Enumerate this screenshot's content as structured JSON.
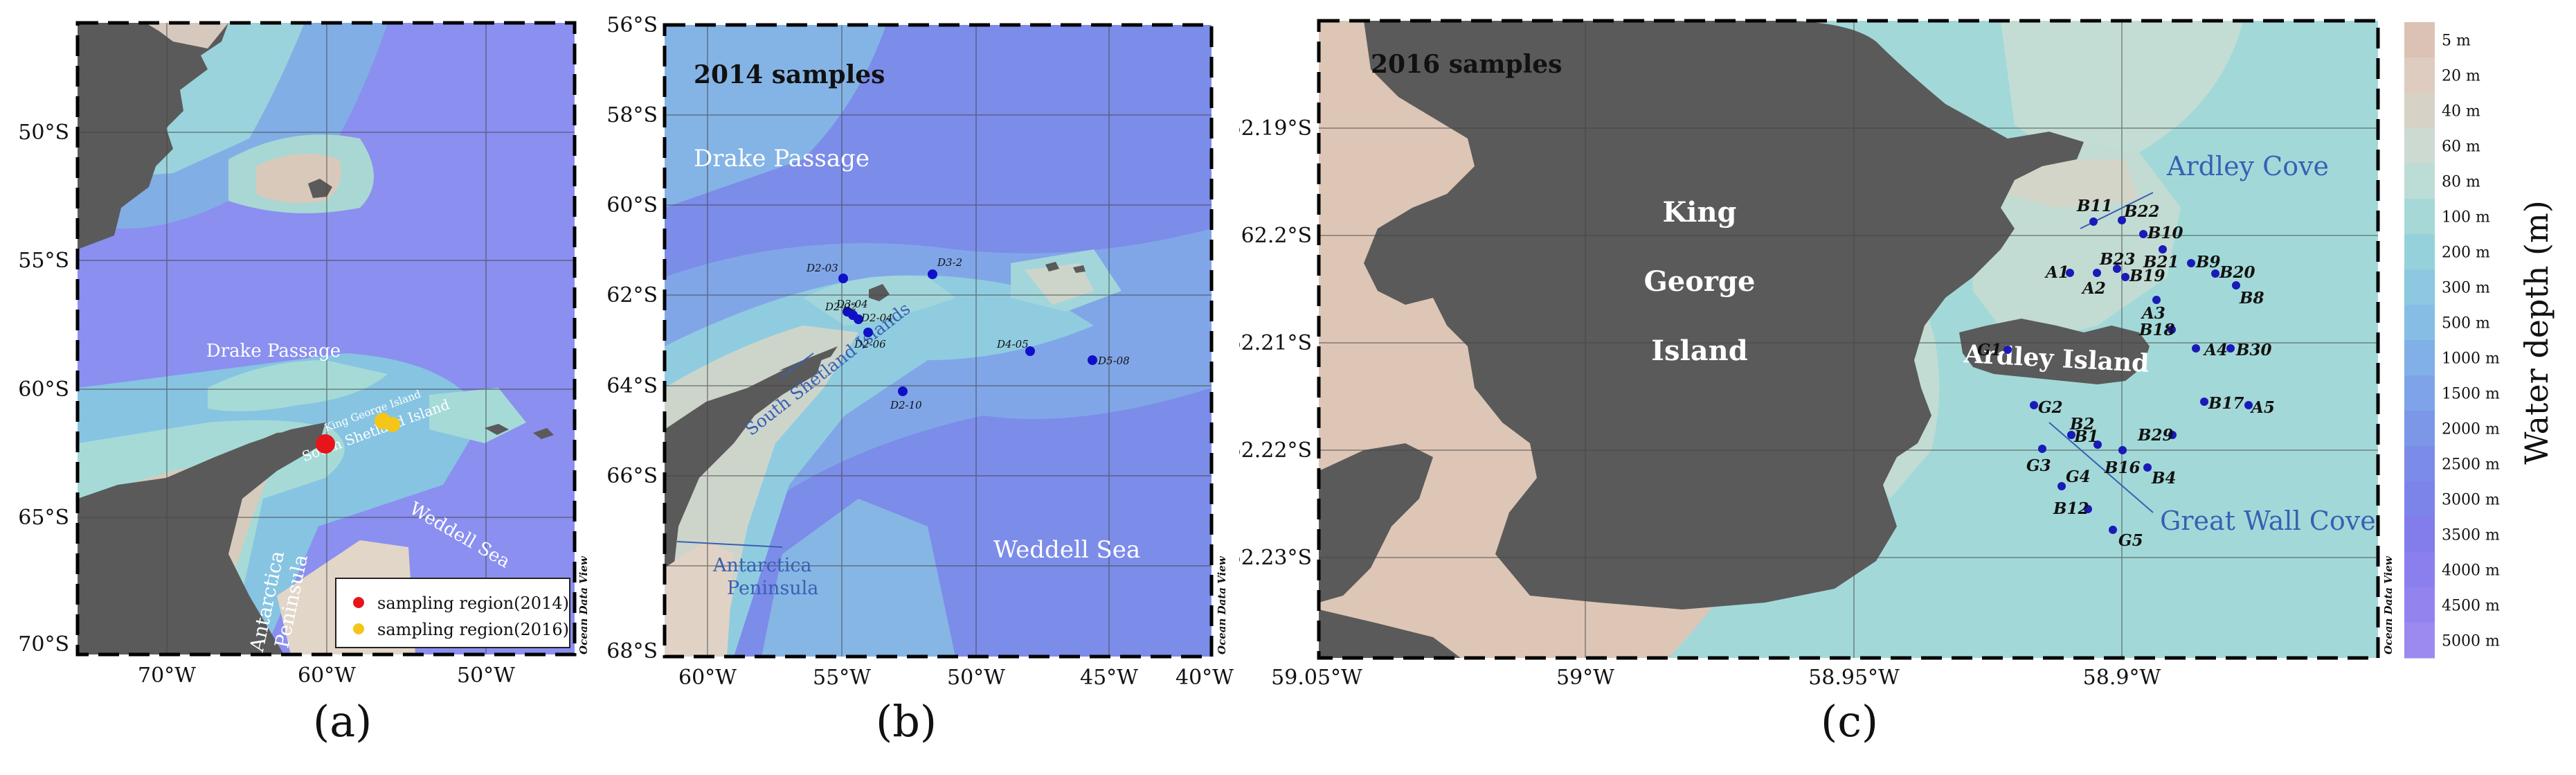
{
  "panel_a": {
    "caption": "(a)",
    "lat_ticks": [
      "50°S",
      "55°S",
      "60°S",
      "65°S",
      "70°S"
    ],
    "lon_ticks": [
      "70°W",
      "60°W",
      "50°W"
    ],
    "labels": {
      "drake": "Drake Passage",
      "weddell": "Weddell Sea",
      "kgi": "King George Island",
      "ssi": "South Shetland Island",
      "ant1": "Antarctica",
      "ant2": "Peninsula"
    },
    "legend": [
      {
        "label": "sampling region(2014)",
        "color": "#e8141b"
      },
      {
        "label": "sampling region(2016)",
        "color": "#f5c518"
      }
    ],
    "odv": "Ocean Data View"
  },
  "panel_b": {
    "caption": "(b)",
    "title": "2014 samples",
    "lat_ticks": [
      "56°S",
      "58°S",
      "60°S",
      "62°S",
      "64°S",
      "66°S",
      "68°S"
    ],
    "lon_ticks": [
      "60°W",
      "55°W",
      "50°W",
      "45°W",
      "40°W"
    ],
    "labels": {
      "drake": "Drake Passage",
      "ssi": "South Shetland Islands",
      "weddell": "Weddell Sea",
      "ant1": "Antarctica",
      "ant2": "Peninsula"
    },
    "stations": [
      {
        "name": "D2-03"
      },
      {
        "name": "D3-2"
      },
      {
        "name": "D2-02"
      },
      {
        "name": "D3-04"
      },
      {
        "name": "D2-04"
      },
      {
        "name": "D2-06"
      },
      {
        "name": "D4-05"
      },
      {
        "name": "D5-08"
      },
      {
        "name": "D2-10"
      }
    ],
    "odv": "Ocean Data View"
  },
  "panel_c": {
    "caption": "(c)",
    "title": "2016 samples",
    "lat_ticks": [
      "62.19°S",
      "62.2°S",
      "62.21°S",
      "62.22°S",
      "62.23°S"
    ],
    "lon_ticks": [
      "59.05°W",
      "59°W",
      "58.95°W",
      "58.9°W"
    ],
    "labels": {
      "king": "King",
      "george": "George",
      "island": "Island",
      "ardley_island": "Ardley Island",
      "ardley_cove": "Ardley Cove",
      "great_wall": "Great Wall Cove"
    },
    "stations": [
      {
        "name": "B11"
      },
      {
        "name": "B22"
      },
      {
        "name": "B10"
      },
      {
        "name": "B23"
      },
      {
        "name": "B21"
      },
      {
        "name": "B9"
      },
      {
        "name": "B20"
      },
      {
        "name": "A1"
      },
      {
        "name": "B19"
      },
      {
        "name": "A2"
      },
      {
        "name": "B8"
      },
      {
        "name": "A3"
      },
      {
        "name": "B18"
      },
      {
        "name": "G1"
      },
      {
        "name": "A4"
      },
      {
        "name": "B30"
      },
      {
        "name": "B17"
      },
      {
        "name": "A5"
      },
      {
        "name": "G2"
      },
      {
        "name": "B2"
      },
      {
        "name": "B1"
      },
      {
        "name": "B29"
      },
      {
        "name": "G3"
      },
      {
        "name": "B16"
      },
      {
        "name": "B4"
      },
      {
        "name": "G4"
      },
      {
        "name": "B12"
      },
      {
        "name": "G5"
      }
    ],
    "odv": "Ocean Data View"
  },
  "colorbar": {
    "title": "Water depth (m)",
    "levels": [
      {
        "label": "5 m",
        "color": "#dcc2b4"
      },
      {
        "label": "20 m",
        "color": "#ddccbf"
      },
      {
        "label": "40 m",
        "color": "#d6d2c6"
      },
      {
        "label": "60 m",
        "color": "#cddad1"
      },
      {
        "label": "80 m",
        "color": "#bcdcd6"
      },
      {
        "label": "100 m",
        "color": "#a6d8d8"
      },
      {
        "label": "200 m",
        "color": "#95d1db"
      },
      {
        "label": "300 m",
        "color": "#8cc8e0"
      },
      {
        "label": "500 m",
        "color": "#86bde4"
      },
      {
        "label": "1000 m",
        "color": "#80b0e7"
      },
      {
        "label": "1500 m",
        "color": "#7ea3e8"
      },
      {
        "label": "2000 m",
        "color": "#7c97e8"
      },
      {
        "label": "2500 m",
        "color": "#7b8ce8"
      },
      {
        "label": "3000 m",
        "color": "#7c83e9"
      },
      {
        "label": "3500 m",
        "color": "#827deb"
      },
      {
        "label": "4000 m",
        "color": "#8a7fed"
      },
      {
        "label": "4500 m",
        "color": "#9383ef"
      },
      {
        "label": "5000 m",
        "color": "#9d8af1"
      }
    ]
  }
}
